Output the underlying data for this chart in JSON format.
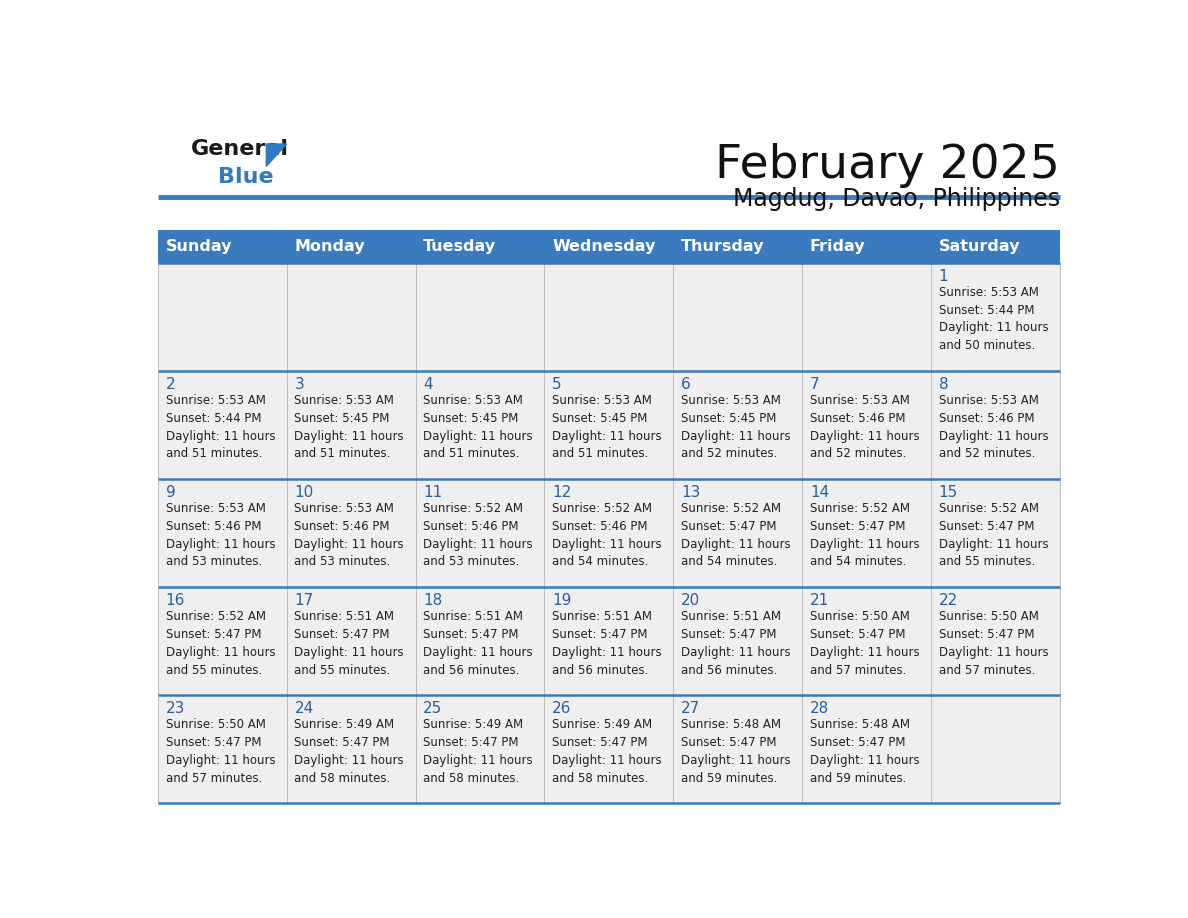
{
  "title": "February 2025",
  "subtitle": "Magdug, Davao, Philippines",
  "header_color": "#3a7abf",
  "header_text_color": "#ffffff",
  "background_color": "#ffffff",
  "cell_bg_color": "#efefef",
  "empty_cell_bg": "#efefef",
  "day_num_color": "#2a5f9e",
  "text_color": "#222222",
  "border_color": "#3a7abf",
  "divider_color": "#bbbbbb",
  "logo_general_color": "#1a1a1a",
  "logo_blue_color": "#2e7bc4",
  "logo_triangle_color": "#2e7bc4",
  "days_of_week": [
    "Sunday",
    "Monday",
    "Tuesday",
    "Wednesday",
    "Thursday",
    "Friday",
    "Saturday"
  ],
  "weeks": [
    [
      {
        "day": "",
        "sunrise": "",
        "sunset": "",
        "daylight": ""
      },
      {
        "day": "",
        "sunrise": "",
        "sunset": "",
        "daylight": ""
      },
      {
        "day": "",
        "sunrise": "",
        "sunset": "",
        "daylight": ""
      },
      {
        "day": "",
        "sunrise": "",
        "sunset": "",
        "daylight": ""
      },
      {
        "day": "",
        "sunrise": "",
        "sunset": "",
        "daylight": ""
      },
      {
        "day": "",
        "sunrise": "",
        "sunset": "",
        "daylight": ""
      },
      {
        "day": "1",
        "sunrise": "5:53 AM",
        "sunset": "5:44 PM",
        "daylight": "11 hours and 50 minutes."
      }
    ],
    [
      {
        "day": "2",
        "sunrise": "5:53 AM",
        "sunset": "5:44 PM",
        "daylight": "11 hours and 51 minutes."
      },
      {
        "day": "3",
        "sunrise": "5:53 AM",
        "sunset": "5:45 PM",
        "daylight": "11 hours and 51 minutes."
      },
      {
        "day": "4",
        "sunrise": "5:53 AM",
        "sunset": "5:45 PM",
        "daylight": "11 hours and 51 minutes."
      },
      {
        "day": "5",
        "sunrise": "5:53 AM",
        "sunset": "5:45 PM",
        "daylight": "11 hours and 51 minutes."
      },
      {
        "day": "6",
        "sunrise": "5:53 AM",
        "sunset": "5:45 PM",
        "daylight": "11 hours and 52 minutes."
      },
      {
        "day": "7",
        "sunrise": "5:53 AM",
        "sunset": "5:46 PM",
        "daylight": "11 hours and 52 minutes."
      },
      {
        "day": "8",
        "sunrise": "5:53 AM",
        "sunset": "5:46 PM",
        "daylight": "11 hours and 52 minutes."
      }
    ],
    [
      {
        "day": "9",
        "sunrise": "5:53 AM",
        "sunset": "5:46 PM",
        "daylight": "11 hours and 53 minutes."
      },
      {
        "day": "10",
        "sunrise": "5:53 AM",
        "sunset": "5:46 PM",
        "daylight": "11 hours and 53 minutes."
      },
      {
        "day": "11",
        "sunrise": "5:52 AM",
        "sunset": "5:46 PM",
        "daylight": "11 hours and 53 minutes."
      },
      {
        "day": "12",
        "sunrise": "5:52 AM",
        "sunset": "5:46 PM",
        "daylight": "11 hours and 54 minutes."
      },
      {
        "day": "13",
        "sunrise": "5:52 AM",
        "sunset": "5:47 PM",
        "daylight": "11 hours and 54 minutes."
      },
      {
        "day": "14",
        "sunrise": "5:52 AM",
        "sunset": "5:47 PM",
        "daylight": "11 hours and 54 minutes."
      },
      {
        "day": "15",
        "sunrise": "5:52 AM",
        "sunset": "5:47 PM",
        "daylight": "11 hours and 55 minutes."
      }
    ],
    [
      {
        "day": "16",
        "sunrise": "5:52 AM",
        "sunset": "5:47 PM",
        "daylight": "11 hours and 55 minutes."
      },
      {
        "day": "17",
        "sunrise": "5:51 AM",
        "sunset": "5:47 PM",
        "daylight": "11 hours and 55 minutes."
      },
      {
        "day": "18",
        "sunrise": "5:51 AM",
        "sunset": "5:47 PM",
        "daylight": "11 hours and 56 minutes."
      },
      {
        "day": "19",
        "sunrise": "5:51 AM",
        "sunset": "5:47 PM",
        "daylight": "11 hours and 56 minutes."
      },
      {
        "day": "20",
        "sunrise": "5:51 AM",
        "sunset": "5:47 PM",
        "daylight": "11 hours and 56 minutes."
      },
      {
        "day": "21",
        "sunrise": "5:50 AM",
        "sunset": "5:47 PM",
        "daylight": "11 hours and 57 minutes."
      },
      {
        "day": "22",
        "sunrise": "5:50 AM",
        "sunset": "5:47 PM",
        "daylight": "11 hours and 57 minutes."
      }
    ],
    [
      {
        "day": "23",
        "sunrise": "5:50 AM",
        "sunset": "5:47 PM",
        "daylight": "11 hours and 57 minutes."
      },
      {
        "day": "24",
        "sunrise": "5:49 AM",
        "sunset": "5:47 PM",
        "daylight": "11 hours and 58 minutes."
      },
      {
        "day": "25",
        "sunrise": "5:49 AM",
        "sunset": "5:47 PM",
        "daylight": "11 hours and 58 minutes."
      },
      {
        "day": "26",
        "sunrise": "5:49 AM",
        "sunset": "5:47 PM",
        "daylight": "11 hours and 58 minutes."
      },
      {
        "day": "27",
        "sunrise": "5:48 AM",
        "sunset": "5:47 PM",
        "daylight": "11 hours and 59 minutes."
      },
      {
        "day": "28",
        "sunrise": "5:48 AM",
        "sunset": "5:47 PM",
        "daylight": "11 hours and 59 minutes."
      },
      {
        "day": "",
        "sunrise": "",
        "sunset": "",
        "daylight": ""
      }
    ]
  ]
}
